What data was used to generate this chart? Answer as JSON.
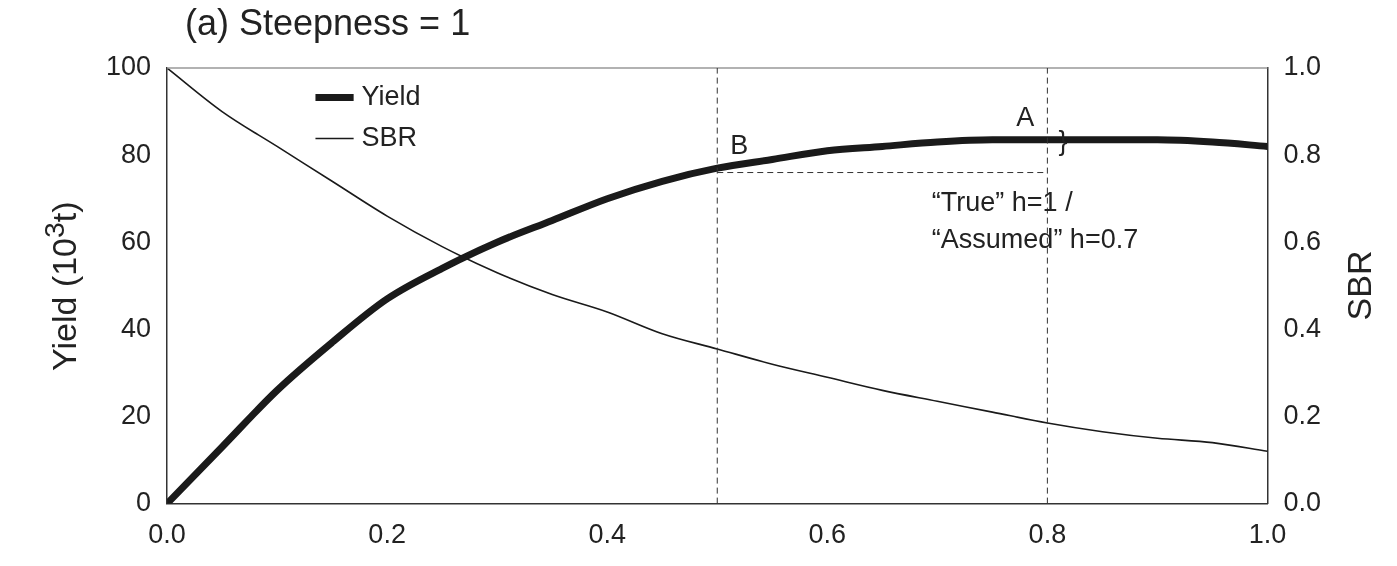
{
  "chart_data": {
    "type": "line",
    "title": "(a)  Steepness = 1",
    "ylabel": "Yield (10$^{3}$t)",
    "y2label": "SBR",
    "x": [
      0,
      0.05,
      0.1,
      0.15,
      0.2,
      0.25,
      0.3,
      0.35,
      0.4,
      0.45,
      0.5,
      0.55,
      0.6,
      0.65,
      0.7,
      0.75,
      0.8,
      0.85,
      0.9,
      0.95,
      1.0
    ],
    "series": [
      {
        "name": "Yield",
        "color": "#1a1a1a",
        "values": [
          0,
          13,
          26,
          37,
          47,
          54,
          60,
          65,
          70,
          74,
          77,
          79,
          81,
          82,
          83,
          83.5,
          83.5,
          83.5,
          83.5,
          83,
          82
        ]
      },
      {
        "name": "SBR",
        "color": "#1a1a1a",
        "axis": "y2",
        "values": [
          1.0,
          0.9,
          0.82,
          0.74,
          0.66,
          0.59,
          0.53,
          0.48,
          0.44,
          0.39,
          0.355,
          0.32,
          0.29,
          0.26,
          0.235,
          0.21,
          0.185,
          0.165,
          0.15,
          0.14,
          0.12
        ]
      }
    ],
    "xlim": [
      0,
      1
    ],
    "xticks": [
      {
        "value": 0,
        "label": "0.0"
      },
      0.2,
      0.4,
      0.6,
      0.8,
      {
        "value": 1,
        "label": "1.0"
      }
    ],
    "ylim": [
      0,
      100
    ],
    "yticks": [
      0,
      20,
      40,
      60,
      80,
      100
    ],
    "y2lim": [
      0,
      1
    ],
    "y2ticks": [
      {
        "value": 0,
        "label": "0.0"
      },
      0.2,
      0.4,
      0.6,
      0.8,
      {
        "value": 1,
        "label": "1.0"
      }
    ],
    "ref_lines": [
      {
        "axis": "x",
        "value": 0.5,
        "line_style": "dashed"
      },
      {
        "axis": "x",
        "value": 0.8,
        "line_style": "dashed"
      },
      {
        "axis": "y",
        "value": 76,
        "line_style": "dashed"
      }
    ],
    "annotations": [
      {
        "text": "A",
        "x": 0.78,
        "y": 83.5
      },
      {
        "text": "B",
        "x": 0.52,
        "y": 77
      },
      "}",
      "“True” h=1 /\n“Assumed” h=0.7"
    ],
    "legend": "top left",
    "grid": false,
    "marker": "none",
    "line_style": "solid"
  }
}
